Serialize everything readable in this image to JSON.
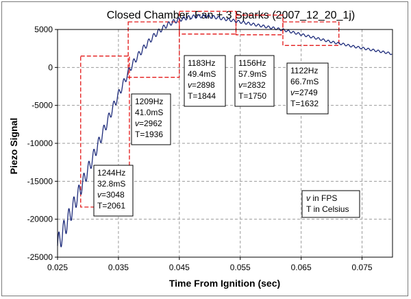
{
  "chart_data": {
    "type": "line",
    "title": "Closed Chamber, Fan + 3 Sparks (2007_12_20_1j)",
    "xlabel": "Time From Ignition (sec)",
    "ylabel": "Piezo Signal",
    "xlim": [
      0.025,
      0.08
    ],
    "ylim": [
      -25000,
      5000
    ],
    "x_ticks": [
      "0.025",
      "0.035",
      "0.045",
      "0.055",
      "0.065",
      "0.075"
    ],
    "x_tick_values": [
      0.025,
      0.035,
      0.045,
      0.055,
      0.065,
      0.075
    ],
    "y_ticks": [
      "5000",
      "0",
      "-5000",
      "-10000",
      "-15000",
      "-20000",
      "-25000"
    ],
    "y_tick_values": [
      5000,
      0,
      -5000,
      -10000,
      -15000,
      -20000,
      -25000
    ],
    "grid": true,
    "series": [
      {
        "color": "#1c2a7a",
        "x": [
          0.025,
          0.026,
          0.027,
          0.028,
          0.029,
          0.03,
          0.031,
          0.032,
          0.033,
          0.034,
          0.035,
          0.036,
          0.037,
          0.038,
          0.039,
          0.04,
          0.041,
          0.042,
          0.043,
          0.044,
          0.045,
          0.046,
          0.047,
          0.048,
          0.049,
          0.05,
          0.051,
          0.052,
          0.053,
          0.054,
          0.055,
          0.056,
          0.057,
          0.058,
          0.059,
          0.06,
          0.061,
          0.062,
          0.063,
          0.064,
          0.065,
          0.066,
          0.067,
          0.068,
          0.069,
          0.07,
          0.071,
          0.072,
          0.073,
          0.074,
          0.075,
          0.076,
          0.077,
          0.078,
          0.079,
          0.0799
        ],
        "y": [
          -23500,
          -21500,
          -19500,
          -17500,
          -15500,
          -13500,
          -11500,
          -9500,
          -7500,
          -5500,
          -3600,
          -1800,
          0,
          1300,
          2400,
          3400,
          4300,
          5000,
          5600,
          6000,
          6300,
          6500,
          6650,
          6750,
          6750,
          6700,
          6600,
          6450,
          6300,
          6150,
          6000,
          5850,
          5700,
          5550,
          5400,
          5250,
          5100,
          4950,
          4750,
          4550,
          4350,
          4150,
          3950,
          3750,
          3550,
          3350,
          3200,
          3050,
          2850,
          2700,
          2550,
          2400,
          2250,
          2100,
          1950,
          1800
        ]
      }
    ],
    "annotation_boxes": [
      {
        "x0": 0.0288,
        "x1": 0.0368,
        "y0": -18400,
        "y1": 1500
      },
      {
        "x0": 0.0366,
        "x1": 0.045,
        "y0": -1300,
        "y1": 6000
      },
      {
        "x0": 0.045,
        "x1": 0.0543,
        "y0": 4400,
        "y1": 7400
      },
      {
        "x0": 0.0543,
        "x1": 0.062,
        "y0": 4300,
        "y1": 6900
      },
      {
        "x0": 0.062,
        "x1": 0.0712,
        "y0": 2900,
        "y1": 6000
      }
    ],
    "annotations": [
      {
        "lines": [
          "1244Hz",
          "32.8mS",
          "v=3048",
          "T=2061"
        ]
      },
      {
        "lines": [
          "1209Hz",
          "41.0mS",
          "v=2962",
          "T=1936"
        ]
      },
      {
        "lines": [
          "1183Hz",
          "49.4mS",
          "v=2898",
          "T=1844"
        ]
      },
      {
        "lines": [
          "1156Hz",
          "57.9mS",
          "v=2832",
          "T=1750"
        ]
      },
      {
        "lines": [
          "1122Hz",
          "66.7mS",
          "v=2749",
          "T=1632"
        ]
      }
    ],
    "note": {
      "lines": [
        "v in FPS",
        "T in Celsius"
      ]
    }
  }
}
